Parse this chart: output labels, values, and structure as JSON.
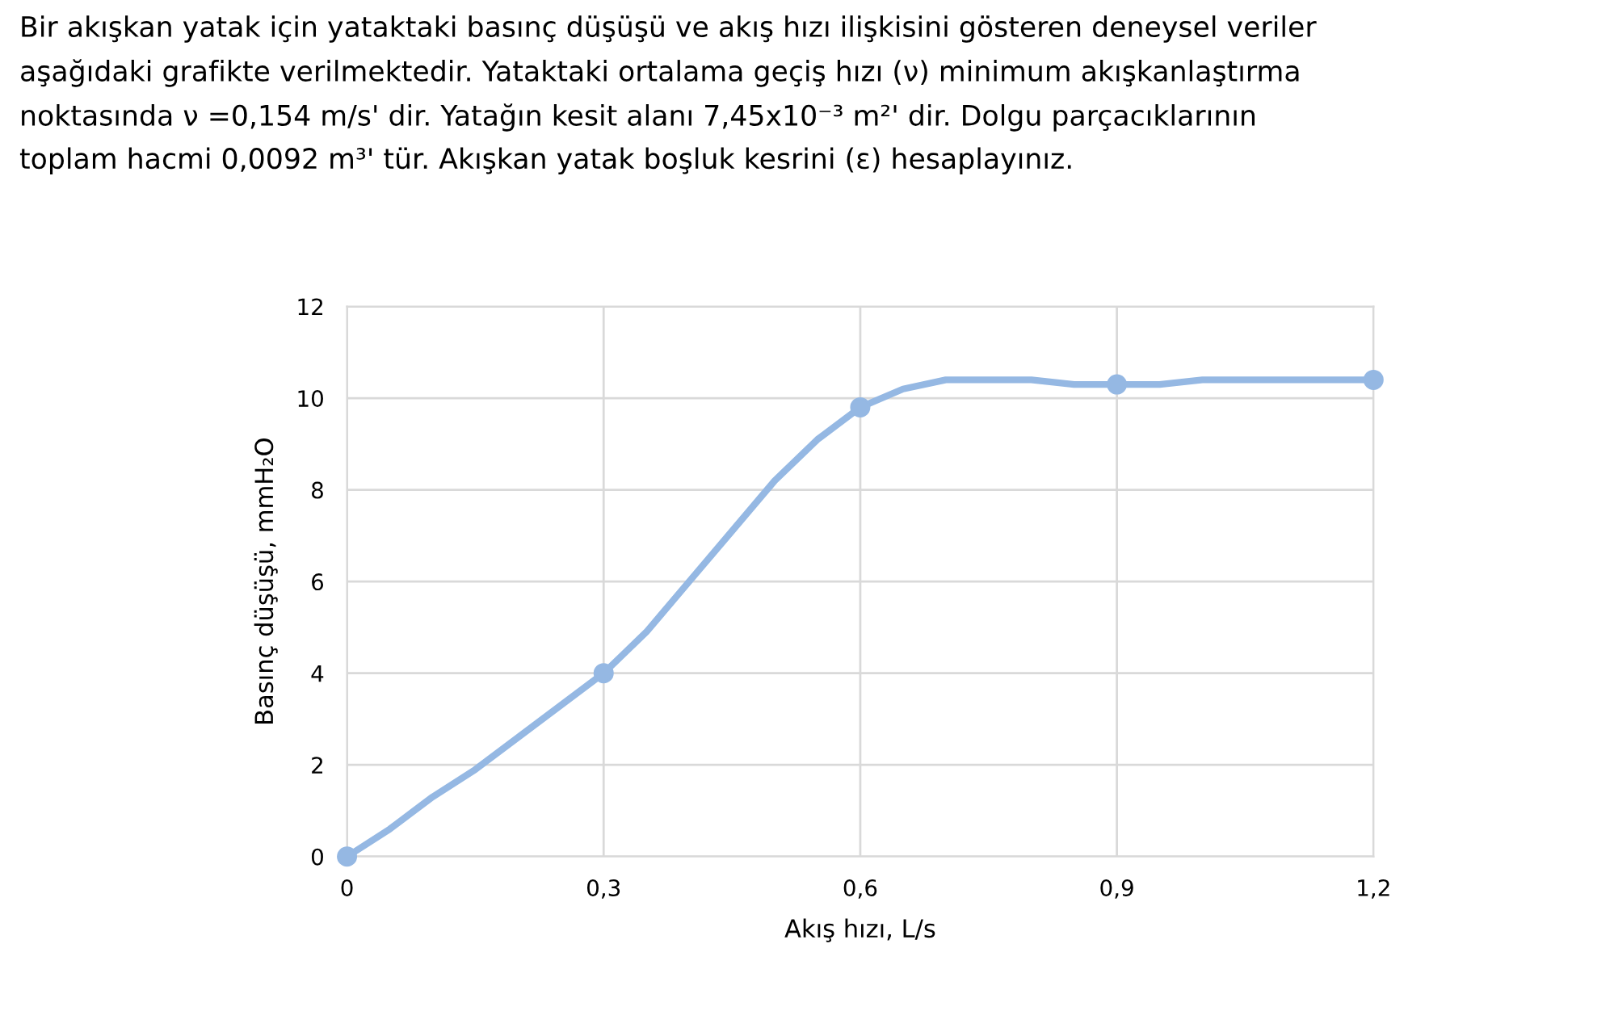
{
  "chart_data": {
    "type": "line",
    "title": "Bir akışkan yatak için yataktaki basınç düşüşü ve akış hızı ilişkisini gösteren deneysel veriler\naşağıdaki grafikte verilmektedir. Yataktaki ortalama geçiş hızı (ν) minimum akışkanlaştırma\nnoktasında ν =0,154 m/s' dir. Yatağın kesit alanı 7,45x10⁻³ m²' dir. Dolgu parçacıklarının\ntoplam hacmi 0,0092 m³' tür. Akışkan yatak boşluk kesrini (ε) hesaplayınız.",
    "xlabel": "Akış hızı, L/s",
    "ylabel": "Basınç düşüşü, mmH₂O",
    "x": [
      0,
      0.3,
      0.6,
      0.9,
      1.2
    ],
    "series": [
      {
        "marker": "none",
        "color": "#95b8e3",
        "x": [
          0,
          0.05,
          0.1,
          0.15,
          0.2,
          0.25,
          0.3,
          0.35,
          0.4,
          0.45,
          0.5,
          0.55,
          0.6,
          0.65,
          0.7,
          0.75,
          0.8,
          0.85,
          0.9,
          0.95,
          1.0,
          1.05,
          1.1,
          1.15,
          1.2
        ],
        "values": [
          0,
          0.6,
          1.3,
          1.9,
          2.6,
          3.3,
          4,
          4.9,
          6.0,
          7.1,
          8.2,
          9.1,
          9.8,
          10.2,
          10.4,
          10.4,
          10.4,
          10.3,
          10.3,
          10.3,
          10.4,
          10.4,
          10.4,
          10.4,
          10.4
        ]
      },
      {
        "type": "scatter",
        "marker": "circle",
        "color": "#95b8e3",
        "values": [
          0,
          4,
          9.8,
          10.3,
          10.4
        ]
      }
    ],
    "xlim": [
      0,
      1.2
    ],
    "xticks": [
      0,
      {
        "value": 0.3,
        "label": "0,3"
      },
      {
        "value": 0.6,
        "label": "0,6"
      },
      {
        "value": 0.9,
        "label": "0,9"
      },
      {
        "value": 1.2,
        "label": "1,2"
      }
    ],
    "ylim": [
      0,
      12
    ],
    "yticks": [
      0,
      2,
      4,
      6,
      8,
      10,
      12
    ],
    "grid": true,
    "line_style": "solid",
    "legend": false
  }
}
